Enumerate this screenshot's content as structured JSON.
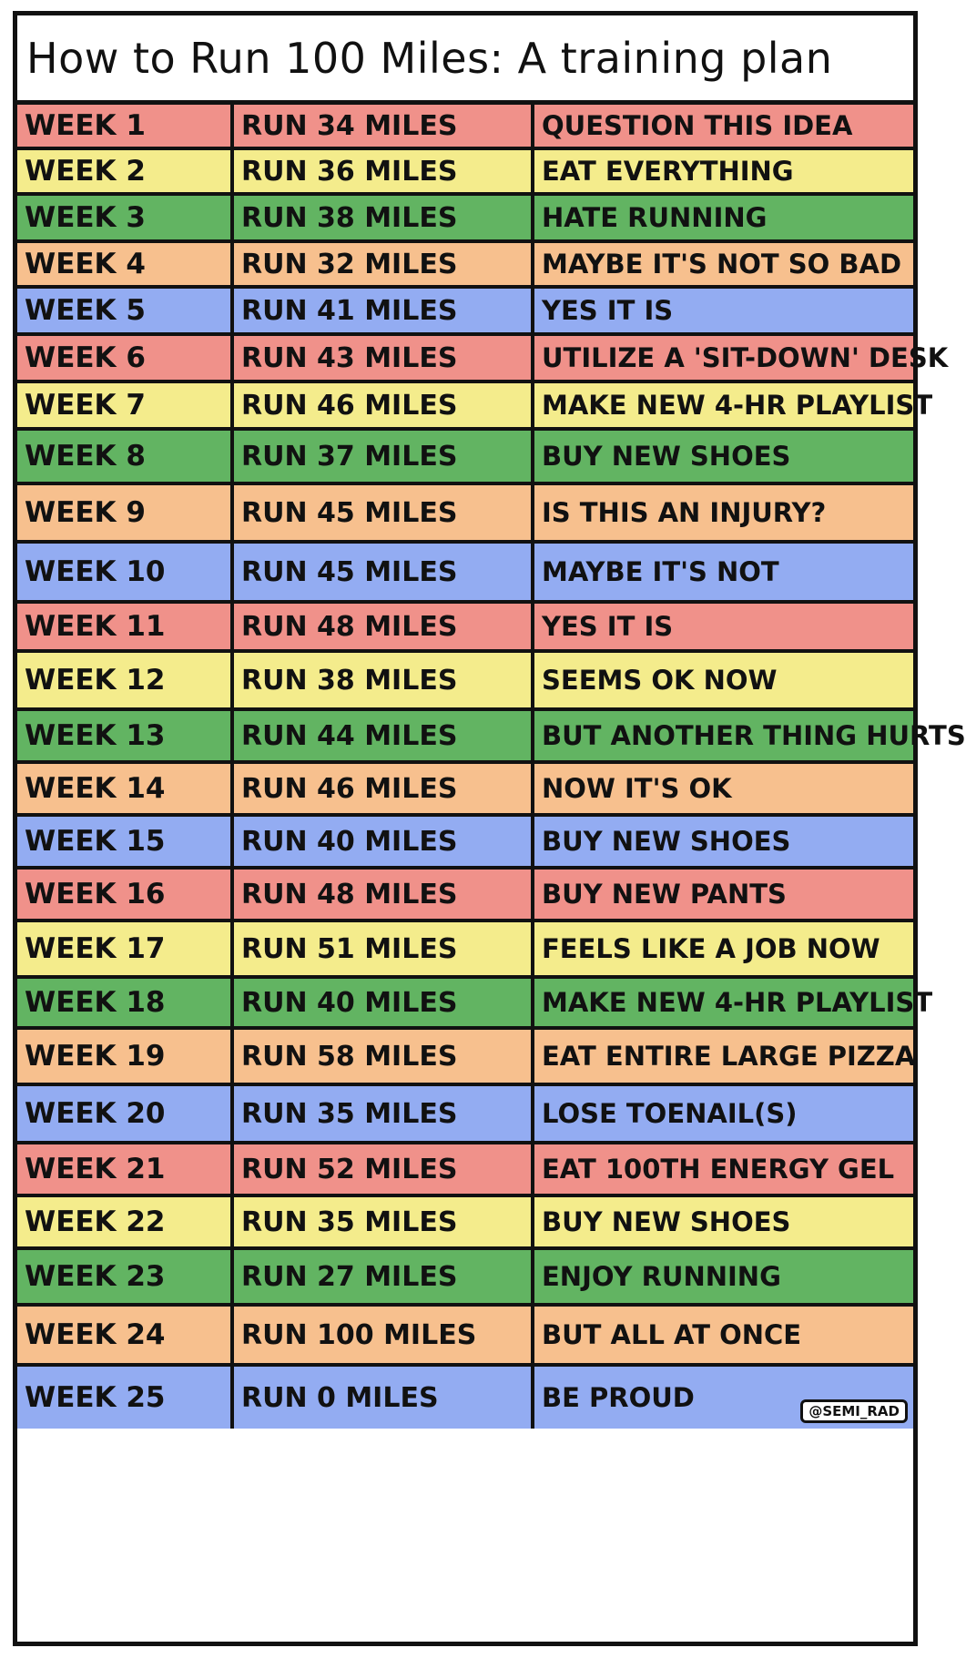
{
  "title": "How to Run 100 Miles: A training plan",
  "credit": "@SEMI_RAD",
  "colors": {
    "red": "#f0918a",
    "yellow": "#f4ec8c",
    "green": "#62b462",
    "orange": "#f7c08e",
    "blue": "#93acf2",
    "outline": "#111111"
  },
  "rows": [
    {
      "week": "WEEK 1",
      "miles": "RUN 34 MILES",
      "note": "QUESTION THIS IDEA",
      "color": "red"
    },
    {
      "week": "WEEK 2",
      "miles": "RUN 36 MILES",
      "note": "EAT EVERYTHING",
      "color": "yellow"
    },
    {
      "week": "WEEK 3",
      "miles": "RUN 38 MILES",
      "note": "HATE RUNNING",
      "color": "green"
    },
    {
      "week": "WEEK 4",
      "miles": "RUN 32 MILES",
      "note": "MAYBE IT'S NOT SO BAD",
      "color": "orange"
    },
    {
      "week": "WEEK 5",
      "miles": "RUN 41 MILES",
      "note": "YES IT IS",
      "color": "blue"
    },
    {
      "week": "WEEK 6",
      "miles": "RUN 43 MILES",
      "note": "UTILIZE A 'SIT-DOWN' DESK",
      "color": "red"
    },
    {
      "week": "WEEK 7",
      "miles": "RUN 46 MILES",
      "note": "MAKE NEW 4-HR PLAYLIST",
      "color": "yellow"
    },
    {
      "week": "WEEK 8",
      "miles": "RUN 37 MILES",
      "note": "BUY NEW SHOES",
      "color": "green"
    },
    {
      "week": "WEEK 9",
      "miles": "RUN 45 MILES",
      "note": "IS THIS AN INJURY?",
      "color": "orange"
    },
    {
      "week": "WEEK 10",
      "miles": "RUN 45 MILES",
      "note": "MAYBE IT'S NOT",
      "color": "blue"
    },
    {
      "week": "WEEK 11",
      "miles": "RUN 48 MILES",
      "note": "YES IT IS",
      "color": "red"
    },
    {
      "week": "WEEK 12",
      "miles": "RUN 38 MILES",
      "note": "SEEMS OK NOW",
      "color": "yellow"
    },
    {
      "week": "WEEK 13",
      "miles": "RUN 44 MILES",
      "note": "BUT ANOTHER THING HURTS",
      "color": "green"
    },
    {
      "week": "WEEK 14",
      "miles": "RUN 46 MILES",
      "note": "NOW IT'S OK",
      "color": "orange"
    },
    {
      "week": "WEEK 15",
      "miles": "RUN 40 MILES",
      "note": "BUY NEW SHOES",
      "color": "blue"
    },
    {
      "week": "WEEK 16",
      "miles": "RUN 48 MILES",
      "note": "BUY NEW PANTS",
      "color": "red"
    },
    {
      "week": "WEEK 17",
      "miles": "RUN 51 MILES",
      "note": "FEELS LIKE A JOB NOW",
      "color": "yellow"
    },
    {
      "week": "WEEK 18",
      "miles": "RUN 40 MILES",
      "note": "MAKE NEW 4-HR PLAYLIST",
      "color": "green"
    },
    {
      "week": "WEEK 19",
      "miles": "RUN 58 MILES",
      "note": "EAT ENTIRE LARGE PIZZA",
      "color": "orange"
    },
    {
      "week": "WEEK 20",
      "miles": "RUN 35 MILES",
      "note": "LOSE TOENAIL(S)",
      "color": "blue"
    },
    {
      "week": "WEEK 21",
      "miles": "RUN 52 MILES",
      "note": "EAT 100TH ENERGY GEL",
      "color": "red"
    },
    {
      "week": "WEEK 22",
      "miles": "RUN 35 MILES",
      "note": "BUY NEW SHOES",
      "color": "yellow"
    },
    {
      "week": "WEEK 23",
      "miles": "RUN 27 MILES",
      "note": "ENJOY RUNNING",
      "color": "green"
    },
    {
      "week": "WEEK 24",
      "miles": "RUN 100 MILES",
      "note": "BUT ALL AT ONCE",
      "color": "orange"
    },
    {
      "week": "WEEK 25",
      "miles": "RUN 0 MILES",
      "note": "BE PROUD",
      "color": "blue"
    }
  ]
}
